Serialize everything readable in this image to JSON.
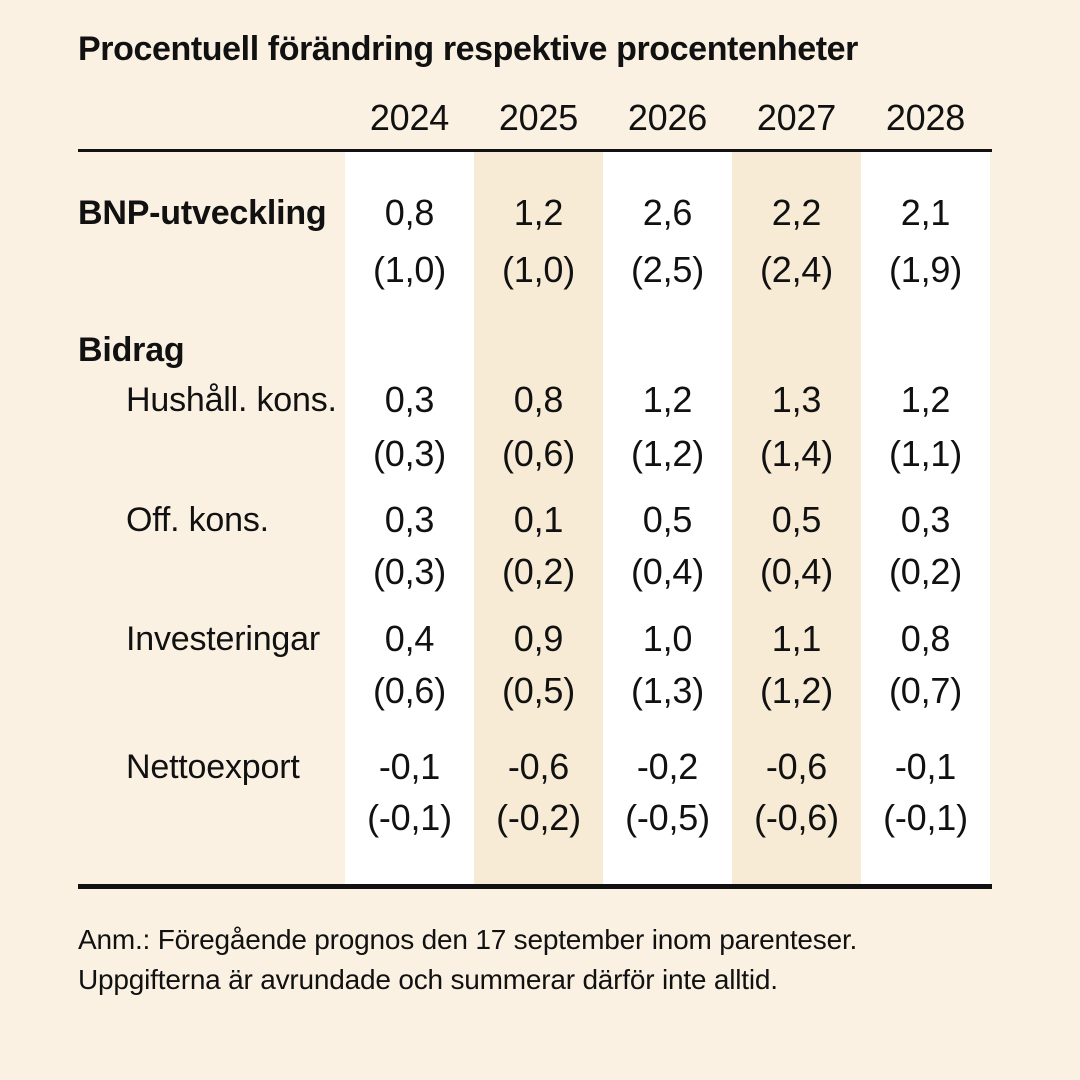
{
  "title": "Procentuell förändring respektive procentenheter",
  "footnote": {
    "line1": "Anm.: Föregående prognos den 17 september inom parenteser.",
    "line2": "Uppgifterna är avrundade och summerar därför inte alltid."
  },
  "colors": {
    "background": "#FAF1E3",
    "stripe_white": "#FFFFFF",
    "stripe_beige": "#F7EBD6",
    "text": "#111111",
    "rule": "#111111"
  },
  "chart_data": {
    "type": "table",
    "title": "Procentuell förändring respektive procentenheter",
    "categories": [
      "2024",
      "2025",
      "2026",
      "2027",
      "2028"
    ],
    "value_note": "main value = current forecast, value in parentheses = previous forecast (17 september)",
    "rows": [
      {
        "label": "BNP-utveckling",
        "bold": true,
        "indent": false,
        "current": [
          "0,8",
          "1,2",
          "2,6",
          "2,2",
          "2,1"
        ],
        "previous": [
          "(1,0)",
          "(1,0)",
          "(2,5)",
          "(2,4)",
          "(1,9)"
        ]
      },
      {
        "label": "Bidrag",
        "bold": true,
        "indent": false,
        "section_header": true
      },
      {
        "label": "Hushåll. kons.",
        "bold": false,
        "indent": true,
        "current": [
          "0,3",
          "0,8",
          "1,2",
          "1,3",
          "1,2"
        ],
        "previous": [
          "(0,3)",
          "(0,6)",
          "(1,2)",
          "(1,4)",
          "(1,1)"
        ]
      },
      {
        "label": "Off. kons.",
        "bold": false,
        "indent": true,
        "current": [
          "0,3",
          "0,1",
          "0,5",
          "0,5",
          "0,3"
        ],
        "previous": [
          "(0,3)",
          "(0,2)",
          "(0,4)",
          "(0,4)",
          "(0,2)"
        ]
      },
      {
        "label": "Investeringar",
        "bold": false,
        "indent": true,
        "current": [
          "0,4",
          "0,9",
          "1,0",
          "1,1",
          "0,8"
        ],
        "previous": [
          "(0,6)",
          "(0,5)",
          "(1,3)",
          "(1,2)",
          "(0,7)"
        ]
      },
      {
        "label": "Nettoexport",
        "bold": false,
        "indent": true,
        "current": [
          "-0,1",
          "-0,6",
          "-0,2",
          "-0,6",
          "-0,1"
        ],
        "previous": [
          "(-0,1)",
          "(-0,2)",
          "(-0,5)",
          "(-0,6)",
          "(-0,1)"
        ]
      }
    ]
  }
}
